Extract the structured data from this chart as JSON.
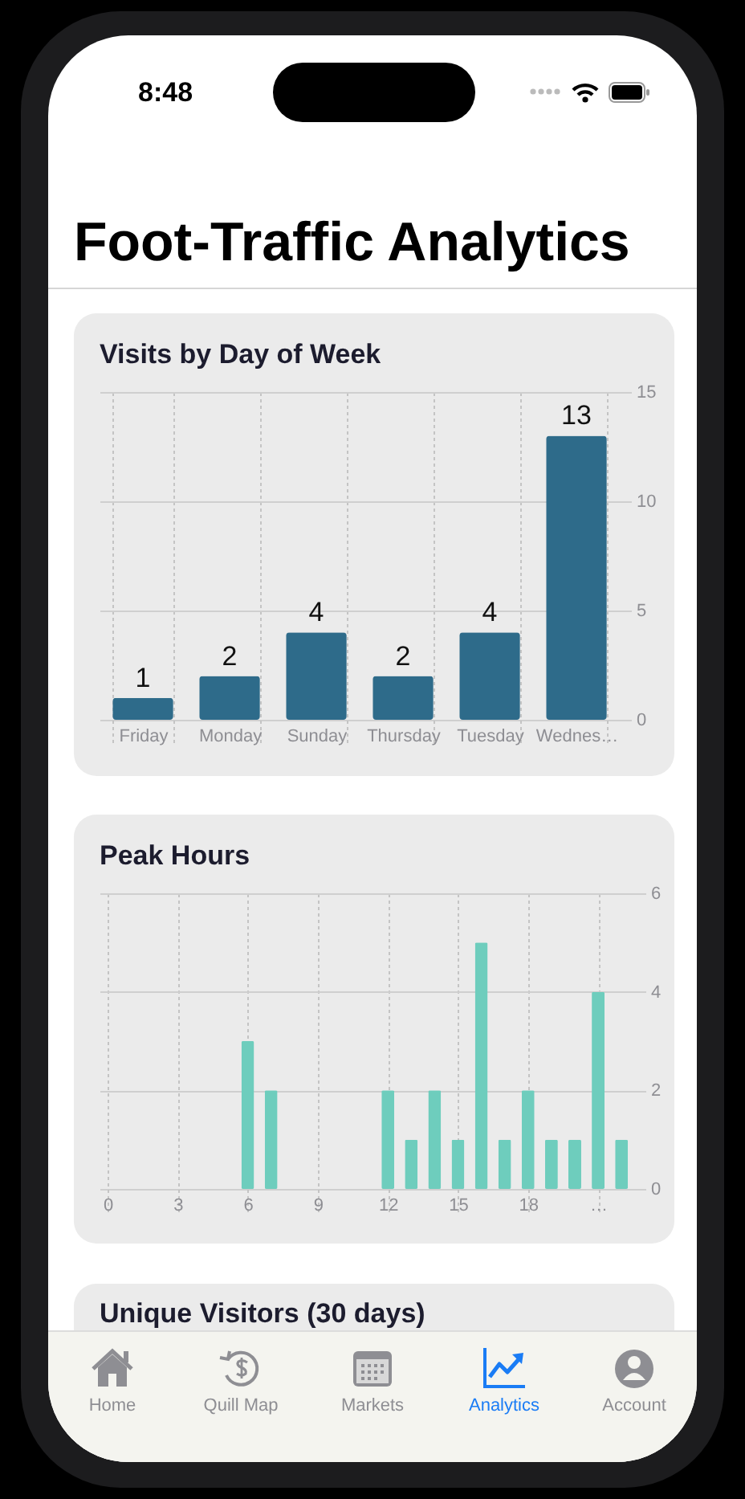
{
  "chart_data": [
    {
      "type": "other",
      "title": "Foot-Traffic Analytics",
      "annotations": [
        "8:48"
      ]
    },
    {
      "type": "bar",
      "title": "Visits by Day of Week",
      "categories": [
        "Friday",
        "Monday",
        "Sunday",
        "Thursday",
        "Tuesday",
        "Wednes…"
      ],
      "values": [
        1,
        2,
        4,
        2,
        4,
        13
      ],
      "color": "#2e6b8a",
      "ylim": [
        0,
        15
      ],
      "yticks": [
        0,
        5,
        10,
        15
      ],
      "grid": true,
      "data_labels": true
    },
    {
      "type": "bar",
      "title": "Peak Hours",
      "x": [
        6,
        7,
        12,
        13,
        14,
        15,
        16,
        17,
        18,
        19,
        20,
        21,
        22
      ],
      "values": [
        3,
        2,
        2,
        1,
        2,
        1,
        5,
        1,
        2,
        1,
        1,
        4,
        1
      ],
      "color": "#6ecdbd",
      "xlim": [
        0,
        22.2
      ],
      "xticks": [
        0,
        3,
        6,
        9,
        12,
        15,
        18,
        {
          "value": 21,
          "label": "…"
        }
      ],
      "ylim": [
        0,
        6
      ],
      "yticks": [
        0,
        2,
        4,
        6
      ],
      "grid": true
    },
    {
      "type": "other",
      "title": "Unique Visitors (30 days)",
      "annotations": [
        "Home",
        "Quill Map",
        "Markets",
        "Analytics",
        "Account"
      ]
    }
  ]
}
